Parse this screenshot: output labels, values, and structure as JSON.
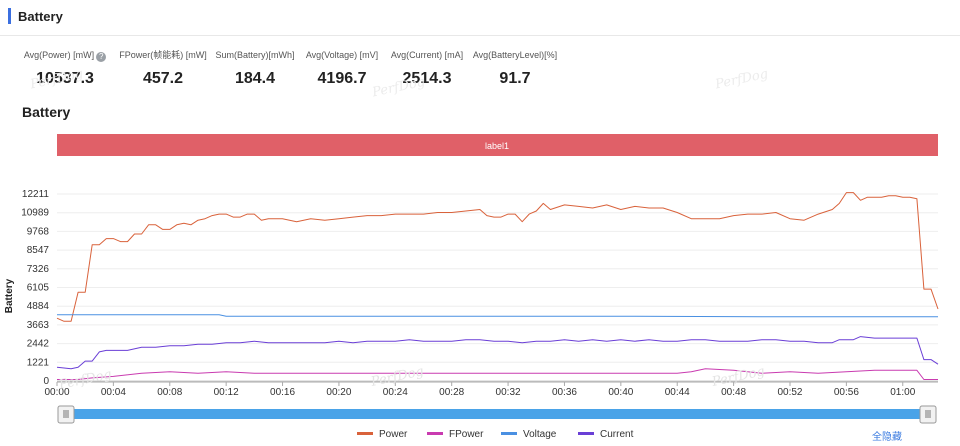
{
  "section": {
    "title": "Battery"
  },
  "stats": [
    {
      "label": "Avg(Power) [mW]",
      "value": "10537.3",
      "help": true,
      "help_icon": "help-circle-icon"
    },
    {
      "label": "FPower(帧能耗) [mW]",
      "value": "457.2"
    },
    {
      "label": "Sum(Battery)[mWh]",
      "value": "184.4"
    },
    {
      "label": "Avg(Voltage) [mV]",
      "value": "4196.7"
    },
    {
      "label": "Avg(Current) [mA]",
      "value": "2514.3"
    },
    {
      "label": "Avg(BatteryLevel)[%]",
      "value": "91.7"
    }
  ],
  "chart_title": "Battery",
  "watermark": "PerfDog",
  "toggle_all_label": "全隐藏",
  "colors": {
    "power": "#d9623b",
    "fpower": "#c93bb0",
    "voltage": "#4a90e2",
    "current": "#6a3fd6",
    "label_band": "#e06068",
    "slider": "#4aa3e8"
  },
  "chart_data": {
    "type": "line",
    "ylabel": "Battery",
    "y_ticks": [
      0,
      1221,
      2442,
      3663,
      4884,
      6105,
      7326,
      8547,
      9768,
      10989,
      12211
    ],
    "ylim": [
      0,
      13000
    ],
    "x_ticks": [
      "00:00",
      "00:04",
      "00:08",
      "00:12",
      "00:16",
      "00:20",
      "00:24",
      "00:28",
      "00:32",
      "00:36",
      "00:40",
      "00:44",
      "00:48",
      "00:52",
      "00:56",
      "01:00"
    ],
    "xlim_seconds": [
      0,
      3750
    ],
    "x_tick_step_seconds": 240,
    "band_label": "label1",
    "legend_position": "bottom",
    "series": [
      {
        "name": "Power",
        "key": "power",
        "x": [
          0,
          30,
          60,
          90,
          120,
          150,
          180,
          210,
          240,
          270,
          300,
          330,
          360,
          390,
          420,
          450,
          480,
          510,
          540,
          570,
          600,
          630,
          660,
          690,
          720,
          750,
          780,
          810,
          840,
          870,
          900,
          960,
          1020,
          1080,
          1140,
          1200,
          1260,
          1320,
          1380,
          1440,
          1500,
          1560,
          1620,
          1680,
          1740,
          1800,
          1830,
          1860,
          1890,
          1920,
          1950,
          1980,
          2010,
          2040,
          2070,
          2100,
          2160,
          2220,
          2280,
          2340,
          2400,
          2460,
          2520,
          2580,
          2640,
          2700,
          2760,
          2820,
          2880,
          2940,
          3000,
          3060,
          3120,
          3180,
          3240,
          3300,
          3330,
          3360,
          3390,
          3420,
          3450,
          3480,
          3510,
          3540,
          3570,
          3600,
          3630,
          3660,
          3690,
          3720,
          3750
        ],
        "y": [
          4100,
          3900,
          3900,
          5800,
          5800,
          8900,
          8900,
          9300,
          9300,
          9100,
          9100,
          9600,
          9600,
          10200,
          10200,
          9900,
          9900,
          10200,
          10300,
          10200,
          10500,
          10600,
          10800,
          10900,
          10900,
          10700,
          10700,
          10900,
          10900,
          10500,
          10600,
          10600,
          10400,
          10600,
          10500,
          10600,
          10700,
          10800,
          10800,
          10900,
          10900,
          10900,
          11000,
          11000,
          11100,
          11200,
          10800,
          10700,
          10700,
          10900,
          10900,
          10400,
          10900,
          11100,
          11600,
          11200,
          11500,
          11400,
          11300,
          11500,
          11200,
          11400,
          11300,
          11300,
          11000,
          10600,
          10600,
          10600,
          10800,
          10900,
          10900,
          11000,
          10600,
          10500,
          10900,
          11200,
          11600,
          12300,
          12300,
          11800,
          12000,
          12000,
          12000,
          12100,
          12100,
          12000,
          12000,
          11900,
          6000,
          6000,
          4700
        ]
      },
      {
        "name": "FPower",
        "key": "fpower",
        "x": [
          0,
          90,
          150,
          240,
          360,
          480,
          600,
          720,
          840,
          960,
          1080,
          1200,
          1320,
          1440,
          1560,
          1680,
          1800,
          1920,
          2040,
          2160,
          2280,
          2400,
          2520,
          2640,
          2700,
          2760,
          2880,
          3000,
          3120,
          3240,
          3360,
          3480,
          3600,
          3630,
          3660,
          3690,
          3720,
          3750
        ],
        "y": [
          100,
          100,
          200,
          300,
          500,
          600,
          500,
          600,
          500,
          500,
          500,
          500,
          500,
          500,
          500,
          500,
          500,
          500,
          500,
          500,
          500,
          500,
          500,
          500,
          600,
          800,
          700,
          500,
          600,
          500,
          600,
          700,
          700,
          700,
          700,
          100,
          100,
          100
        ]
      },
      {
        "name": "Voltage",
        "key": "voltage",
        "x": [
          0,
          690,
          720,
          1200,
          1800,
          2400,
          3000,
          3600,
          3750
        ],
        "y": [
          4330,
          4330,
          4230,
          4230,
          4230,
          4230,
          4200,
          4200,
          4200
        ]
      },
      {
        "name": "Current",
        "key": "current",
        "x": [
          0,
          60,
          90,
          120,
          150,
          180,
          210,
          240,
          300,
          360,
          420,
          480,
          540,
          600,
          660,
          720,
          780,
          840,
          900,
          960,
          1020,
          1080,
          1140,
          1200,
          1260,
          1320,
          1380,
          1440,
          1500,
          1560,
          1620,
          1680,
          1740,
          1800,
          1860,
          1920,
          1980,
          2040,
          2100,
          2160,
          2220,
          2280,
          2340,
          2400,
          2460,
          2520,
          2580,
          2640,
          2700,
          2760,
          2820,
          2880,
          2940,
          3000,
          3060,
          3120,
          3180,
          3240,
          3300,
          3330,
          3360,
          3390,
          3420,
          3480,
          3540,
          3600,
          3630,
          3660,
          3690,
          3720,
          3750
        ],
        "y": [
          900,
          800,
          900,
          1300,
          1300,
          1900,
          2000,
          2000,
          2000,
          2200,
          2200,
          2300,
          2300,
          2400,
          2400,
          2500,
          2500,
          2600,
          2500,
          2500,
          2500,
          2500,
          2500,
          2600,
          2500,
          2600,
          2600,
          2600,
          2700,
          2600,
          2600,
          2600,
          2700,
          2700,
          2600,
          2600,
          2500,
          2600,
          2600,
          2700,
          2600,
          2700,
          2600,
          2700,
          2600,
          2700,
          2600,
          2600,
          2700,
          2700,
          2600,
          2600,
          2600,
          2700,
          2700,
          2600,
          2600,
          2500,
          2500,
          2700,
          2700,
          2700,
          2900,
          2800,
          2800,
          2800,
          2800,
          2800,
          1400,
          1400,
          1100
        ]
      }
    ]
  }
}
